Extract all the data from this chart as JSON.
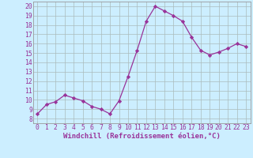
{
  "x": [
    0,
    1,
    2,
    3,
    4,
    5,
    6,
    7,
    8,
    9,
    10,
    11,
    12,
    13,
    14,
    15,
    16,
    17,
    18,
    19,
    20,
    21,
    22,
    23
  ],
  "y": [
    8.5,
    9.5,
    9.8,
    10.5,
    10.2,
    9.9,
    9.3,
    9.0,
    8.5,
    9.9,
    12.5,
    15.3,
    18.4,
    20.0,
    19.5,
    19.0,
    18.4,
    16.7,
    15.3,
    14.8,
    15.1,
    15.5,
    16.0,
    15.7
  ],
  "line_color": "#993399",
  "marker": "D",
  "marker_size": 2.2,
  "bg_color": "#cceeff",
  "grid_color": "#aabbbb",
  "xlabel": "Windchill (Refroidissement éolien,°C)",
  "xlim": [
    -0.5,
    23.5
  ],
  "ylim": [
    7.5,
    20.5
  ],
  "yticks": [
    8,
    9,
    10,
    11,
    12,
    13,
    14,
    15,
    16,
    17,
    18,
    19,
    20
  ],
  "xticks": [
    0,
    1,
    2,
    3,
    4,
    5,
    6,
    7,
    8,
    9,
    10,
    11,
    12,
    13,
    14,
    15,
    16,
    17,
    18,
    19,
    20,
    21,
    22,
    23
  ],
  "tick_color": "#993399",
  "label_color": "#993399",
  "label_fontsize": 6.5,
  "tick_fontsize": 5.8,
  "spine_color": "#999999"
}
